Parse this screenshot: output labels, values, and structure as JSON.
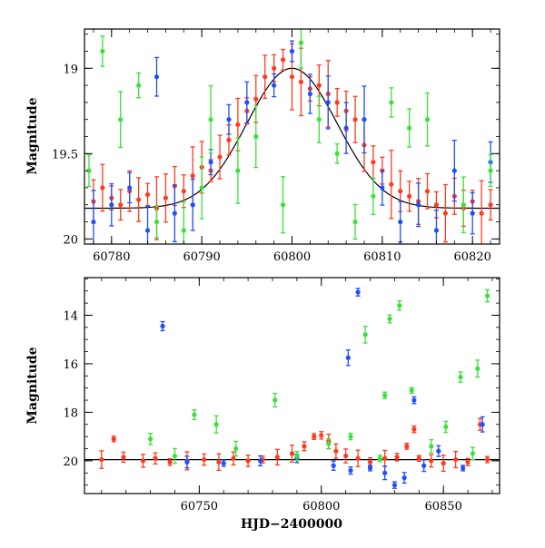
{
  "chart_data": [
    {
      "type": "scatter",
      "panel": "top",
      "xlabel": "",
      "ylabel": "Magnitude",
      "xlim": [
        60777,
        60823
      ],
      "ylim": [
        19.75,
        17.75
      ],
      "y_inverted": true,
      "ylim_display": [
        20.03,
        18.77
      ],
      "xticks": [
        60780,
        60790,
        60800,
        60810,
        60820
      ],
      "xtick_labels": [
        "60780",
        "60790",
        "60800",
        "60810",
        "60820"
      ],
      "yticks": [
        19,
        19.5,
        20
      ],
      "ytick_labels": [
        "19",
        "19.5",
        "20"
      ],
      "model_curve": {
        "type": "gaussian-bump",
        "baseline": 19.82,
        "peak": 19.0,
        "t_peak": 60800,
        "sigma": 5.0,
        "color": "#000000"
      },
      "series": [
        {
          "color": "#ff3b1f",
          "points": [
            [
              60778,
              19.78
            ],
            [
              60779,
              19.7
            ],
            [
              60780,
              19.76
            ],
            [
              60781,
              19.8
            ],
            [
              60782,
              19.72
            ],
            [
              60783,
              19.77
            ],
            [
              60784,
              19.74
            ],
            [
              60785,
              19.82
            ],
            [
              60786,
              19.76
            ],
            [
              60787,
              19.69
            ],
            [
              60788,
              19.72
            ],
            [
              60789,
              19.63
            ],
            [
              60790,
              19.58
            ],
            [
              60791,
              19.6
            ],
            [
              60792,
              19.52
            ],
            [
              60793,
              19.42
            ],
            [
              60794,
              19.33
            ],
            [
              60795,
              19.25
            ],
            [
              60796,
              19.18
            ],
            [
              60797,
              19.05
            ],
            [
              60798,
              19.0
            ],
            [
              60799,
              18.95
            ],
            [
              60800,
              19.05
            ],
            [
              60801,
              19.08
            ],
            [
              60802,
              19.12
            ],
            [
              60803,
              19.1
            ],
            [
              60804,
              19.15
            ],
            [
              60805,
              19.2
            ],
            [
              60806,
              19.25
            ],
            [
              60807,
              19.3
            ],
            [
              60808,
              19.45
            ],
            [
              60809,
              19.55
            ],
            [
              60810,
              19.6
            ],
            [
              60811,
              19.68
            ],
            [
              60812,
              19.72
            ],
            [
              60813,
              19.75
            ],
            [
              60814,
              19.78
            ],
            [
              60815,
              19.72
            ],
            [
              60816,
              19.8
            ],
            [
              60817,
              19.85
            ],
            [
              60818,
              19.75
            ],
            [
              60819,
              19.82
            ],
            [
              60820,
              19.78
            ],
            [
              60821,
              19.85
            ],
            [
              60822,
              19.8
            ]
          ]
        },
        {
          "color": "#1f4fff",
          "points": [
            [
              60778,
              19.9
            ],
            [
              60780,
              19.8
            ],
            [
              60782,
              19.7
            ],
            [
              60784,
              19.95
            ],
            [
              60785,
              19.05
            ],
            [
              60787,
              19.85
            ],
            [
              60789,
              19.8
            ],
            [
              60791,
              19.55
            ],
            [
              60793,
              19.3
            ],
            [
              60795,
              19.2
            ],
            [
              60798,
              19.1
            ],
            [
              60800,
              18.9
            ],
            [
              60802,
              19.15
            ],
            [
              60804,
              19.2
            ],
            [
              60806,
              19.35
            ],
            [
              60808,
              19.3
            ],
            [
              60810,
              19.7
            ],
            [
              60812,
              19.9
            ],
            [
              60814,
              19.8
            ],
            [
              60816,
              19.95
            ],
            [
              60818,
              19.6
            ],
            [
              60820,
              19.85
            ],
            [
              60822,
              19.55
            ]
          ]
        },
        {
          "color": "#3be03b",
          "points": [
            [
              60777.5,
              19.6
            ],
            [
              60779,
              18.9
            ],
            [
              60781,
              19.3
            ],
            [
              60783,
              19.1
            ],
            [
              60785,
              19.9
            ],
            [
              60788,
              19.95
            ],
            [
              60790,
              19.7
            ],
            [
              60791,
              19.3
            ],
            [
              60794,
              19.6
            ],
            [
              60796,
              19.4
            ],
            [
              60799,
              19.8
            ],
            [
              60801,
              18.85
            ],
            [
              60803,
              19.3
            ],
            [
              60805,
              19.5
            ],
            [
              60807,
              19.9
            ],
            [
              60809,
              19.75
            ],
            [
              60811,
              19.2
            ],
            [
              60813,
              19.35
            ],
            [
              60815,
              19.3
            ],
            [
              60819,
              19.8
            ],
            [
              60822,
              19.6
            ]
          ]
        }
      ]
    },
    {
      "type": "scatter",
      "panel": "bottom",
      "xlabel": "HJD−2400000",
      "ylabel": "Magnitude",
      "xlim": [
        60703,
        60873
      ],
      "ylim_display": [
        21.35,
        12.45
      ],
      "y_inverted": true,
      "xticks": [
        60750,
        60800,
        60850
      ],
      "xtick_labels": [
        "60750",
        "60800",
        "60850"
      ],
      "yticks": [
        14,
        16,
        18,
        20
      ],
      "ytick_labels": [
        "14",
        "16",
        "18",
        "20"
      ],
      "model_curve": {
        "type": "flat",
        "baseline": 19.95,
        "color": "#000000"
      },
      "series": [
        {
          "color": "#ff3b1f",
          "points": [
            [
              60710,
              19.95
            ],
            [
              60715,
              19.1
            ],
            [
              60719,
              19.85
            ],
            [
              60727,
              20.0
            ],
            [
              60732,
              19.9
            ],
            [
              60738,
              20.05
            ],
            [
              60745,
              20.0
            ],
            [
              60752,
              19.95
            ],
            [
              60758,
              20.05
            ],
            [
              60764,
              19.9
            ],
            [
              60770,
              20.0
            ],
            [
              60776,
              19.95
            ],
            [
              60782,
              19.85
            ],
            [
              60788,
              19.7
            ],
            [
              60793,
              19.4
            ],
            [
              60797,
              19.0
            ],
            [
              60800,
              18.95
            ],
            [
              60803,
              19.2
            ],
            [
              60806,
              19.6
            ],
            [
              60810,
              19.8
            ],
            [
              60815,
              19.9
            ],
            [
              60820,
              20.05
            ],
            [
              60826,
              19.9
            ],
            [
              60831,
              19.85
            ],
            [
              60835,
              19.4
            ],
            [
              60838,
              18.7
            ],
            [
              60840,
              19.9
            ],
            [
              60845,
              20.0
            ],
            [
              60850,
              20.1
            ],
            [
              60855,
              19.95
            ],
            [
              60860,
              20.05
            ],
            [
              60865,
              18.5
            ],
            [
              60868,
              19.95
            ]
          ]
        },
        {
          "color": "#1f4fff",
          "points": [
            [
              60735,
              14.45
            ],
            [
              60745,
              20.05
            ],
            [
              60760,
              20.1
            ],
            [
              60775,
              20.0
            ],
            [
              60790,
              19.9
            ],
            [
              60805,
              20.2
            ],
            [
              60811,
              15.75
            ],
            [
              60812,
              20.4
            ],
            [
              60815,
              13.05
            ],
            [
              60820,
              20.3
            ],
            [
              60826,
              20.5
            ],
            [
              60830,
              21.0
            ],
            [
              60834,
              20.7
            ],
            [
              60838,
              17.5
            ],
            [
              60842,
              20.2
            ],
            [
              60848,
              19.6
            ],
            [
              60858,
              20.3
            ],
            [
              60866,
              18.5
            ]
          ]
        },
        {
          "color": "#3be03b",
          "points": [
            [
              60730,
              19.1
            ],
            [
              60740,
              19.8
            ],
            [
              60748,
              18.1
            ],
            [
              60757,
              18.5
            ],
            [
              60765,
              19.5
            ],
            [
              60781,
              17.5
            ],
            [
              60790,
              19.8
            ],
            [
              60803,
              19.3
            ],
            [
              60812,
              19.0
            ],
            [
              60818,
              14.8
            ],
            [
              60824,
              19.9
            ],
            [
              60826,
              17.3
            ],
            [
              60828,
              14.15
            ],
            [
              60832,
              13.6
            ],
            [
              60837,
              17.1
            ],
            [
              60845,
              19.4
            ],
            [
              60851,
              18.6
            ],
            [
              60857,
              16.55
            ],
            [
              60862,
              19.7
            ],
            [
              60864,
              16.2
            ],
            [
              60868,
              13.2
            ]
          ]
        }
      ]
    }
  ]
}
